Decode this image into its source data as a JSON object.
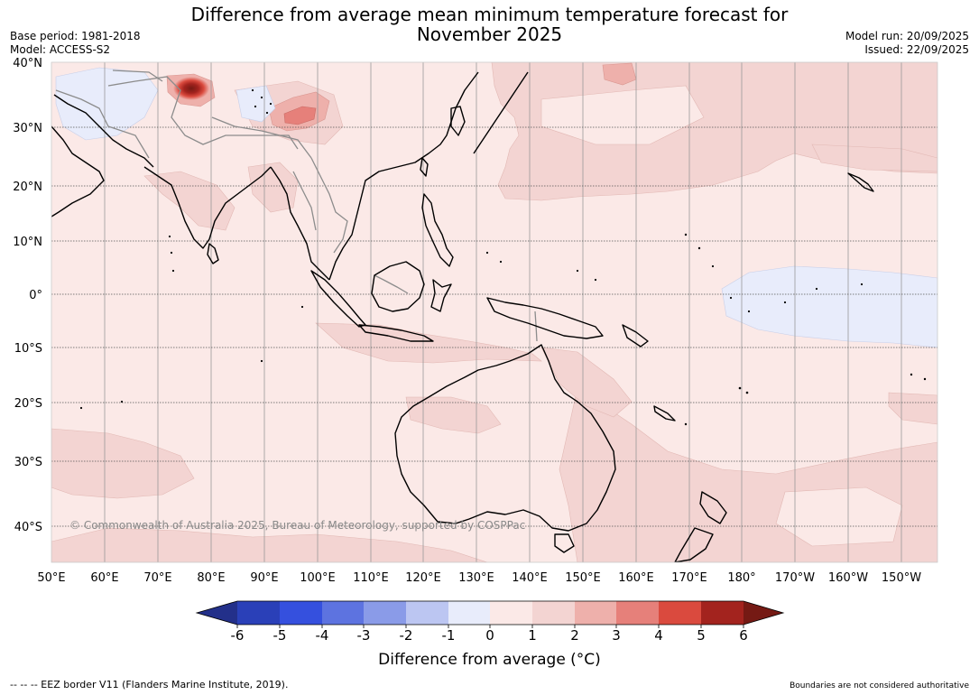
{
  "header": {
    "title_line1": "Difference from average mean minimum temperature forecast for",
    "title_line2": "November 2025",
    "base_period": "Base period: 1981-2018",
    "model": "Model: ACCESS-S2",
    "model_run": "Model run: 20/09/2025",
    "issued": "Issued: 22/09/2025"
  },
  "map": {
    "lat_labels": [
      "40°N",
      "30°N",
      "20°N",
      "10°N",
      "0°",
      "10°S",
      "20°S",
      "30°S",
      "40°S"
    ],
    "lon_labels": [
      "50°E",
      "60°E",
      "70°E",
      "80°E",
      "90°E",
      "100°E",
      "110°E",
      "120°E",
      "130°E",
      "140°E",
      "150°E",
      "160°E",
      "170°E",
      "180°",
      "170°W",
      "160°W",
      "150°W"
    ],
    "copyright": "© Commonwealth of Australia 2025, Bureau of Meteorology, supported by COSPPac",
    "colors": {
      "ocean_base": "#fbe9e7",
      "warm_1_2": "#f3d4d2",
      "warm_2_3": "#eeb0ab",
      "warm_3_4": "#e6807a",
      "cool_0_1": "#e8ecfb",
      "hotspot": "#a3231e"
    }
  },
  "colorbar": {
    "title": "Difference from average (°C)",
    "tick_labels": [
      "-6",
      "-5",
      "-4",
      "-3",
      "-2",
      "-1",
      "0",
      "1",
      "2",
      "3",
      "4",
      "5",
      "6"
    ],
    "colors": [
      "#23308a",
      "#2a40b8",
      "#3550de",
      "#5d73e0",
      "#8a9be8",
      "#bcc6f2",
      "#e8ecfb",
      "#fbe9e7",
      "#f3d4d2",
      "#eeb0ab",
      "#e6807a",
      "#da4a3e",
      "#a3231e",
      "#751a14"
    ]
  },
  "footer": {
    "eez_note": "--  --  -- EEZ border V11 (Flanders Marine Institute, 2019).",
    "boundaries_note": "Boundaries are not considered authoritative"
  }
}
